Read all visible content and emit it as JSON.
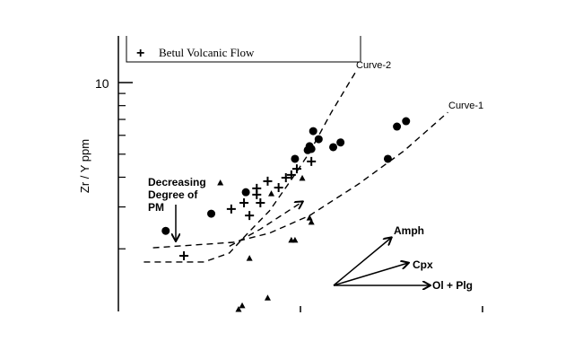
{
  "chart_data": {
    "type": "scatter",
    "title": "",
    "xlabel": "",
    "ylabel": "Zr / Y ppm",
    "y_scale": "log",
    "xlim": [
      0,
      2
    ],
    "ylim": [
      1.11,
      15.7
    ],
    "y_ticks_major": [
      {
        "value": 10,
        "label": "10"
      }
    ],
    "y_ticks_minor": [
      2,
      3,
      4,
      5,
      6,
      7,
      8,
      9
    ],
    "x_ticks": [
      1,
      2
    ],
    "grid": false,
    "legend": {
      "placement": "top",
      "entries": [
        {
          "symbol": "+",
          "label": "Betul Volcanic Flow"
        }
      ]
    },
    "series": [
      {
        "marker": "circle",
        "points": [
          [
            1.07,
            6.25
          ],
          [
            1.1,
            5.78
          ],
          [
            1.05,
            5.4
          ],
          [
            1.06,
            5.26
          ],
          [
            1.18,
            5.35
          ],
          [
            1.22,
            5.6
          ],
          [
            0.97,
            4.78
          ],
          [
            1.53,
            6.53
          ],
          [
            1.58,
            6.88
          ],
          [
            1.48,
            4.78
          ],
          [
            0.7,
            3.46
          ],
          [
            0.51,
            2.81
          ],
          [
            0.26,
            2.38
          ],
          [
            1.04,
            5.2
          ]
        ]
      },
      {
        "name": "Betul Volcanic Flow",
        "marker": "plus",
        "points": [
          [
            1.06,
            4.66
          ],
          [
            0.98,
            4.34
          ],
          [
            0.95,
            4.09
          ],
          [
            0.92,
            3.98
          ],
          [
            0.82,
            3.85
          ],
          [
            0.76,
            3.59
          ],
          [
            0.76,
            3.38
          ],
          [
            0.88,
            3.62
          ],
          [
            0.69,
            3.12
          ],
          [
            0.78,
            3.12
          ],
          [
            0.62,
            2.94
          ],
          [
            0.72,
            2.76
          ],
          [
            0.36,
            1.87
          ]
        ]
      },
      {
        "marker": "triangle",
        "points": [
          [
            0.56,
            3.78
          ],
          [
            0.84,
            3.4
          ],
          [
            1.01,
            3.95
          ],
          [
            1.05,
            2.69
          ],
          [
            1.06,
            2.58
          ],
          [
            0.97,
            2.17
          ],
          [
            0.95,
            2.17
          ],
          [
            0.72,
            1.82
          ],
          [
            0.82,
            1.24
          ],
          [
            0.68,
            1.15
          ],
          [
            0.66,
            1.11
          ]
        ]
      }
    ],
    "curves": [
      {
        "label": "Curve-2",
        "points": [
          [
            0.14,
            1.76
          ],
          [
            0.47,
            1.76
          ],
          [
            0.61,
            1.92
          ],
          [
            0.7,
            2.28
          ],
          [
            0.83,
            2.89
          ],
          [
            0.95,
            3.91
          ],
          [
            1.05,
            5.08
          ],
          [
            1.17,
            7.5
          ],
          [
            1.31,
            11.3
          ]
        ]
      },
      {
        "label": "Curve-1",
        "points": [
          [
            0.19,
            2.02
          ],
          [
            0.63,
            2.13
          ],
          [
            0.83,
            2.33
          ],
          [
            1.05,
            2.76
          ],
          [
            1.32,
            3.75
          ],
          [
            1.57,
            5.17
          ],
          [
            1.81,
            7.5
          ]
        ]
      },
      {
        "label": "",
        "points": [
          [
            0.61,
            2.05
          ],
          [
            0.78,
            2.42
          ],
          [
            1.01,
            3.15
          ]
        ]
      }
    ],
    "annotations": {
      "decreasing": [
        "Decreasing",
        "Degree of",
        "PM"
      ],
      "vectors": [
        "Amph",
        "Cpx",
        "Ol + Plg"
      ]
    }
  }
}
